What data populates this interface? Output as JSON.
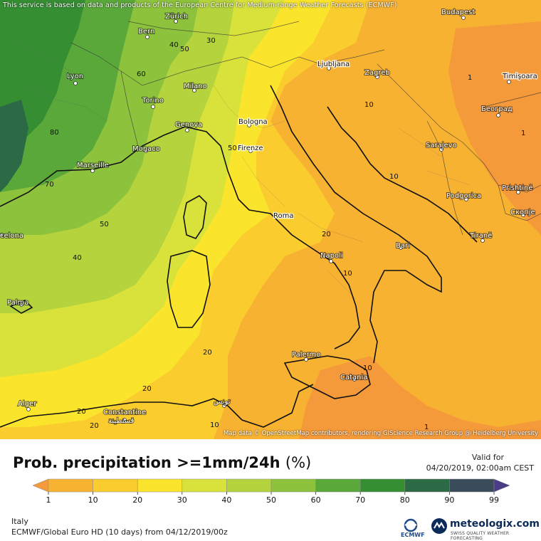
{
  "header": {
    "attribution": "This service is based on data and products of the European Centre for Medium-range Weather Forecasts (ECMWF)",
    "map_credit": "Map data © OpenStreetMap contributors, rendering GIScience Research Group @ Heidelberg University"
  },
  "map": {
    "cities": [
      {
        "name": "Budapest"
      },
      {
        "name": "Zürich"
      },
      {
        "name": "Bern"
      },
      {
        "name": "Lyon"
      },
      {
        "name": "Milano"
      },
      {
        "name": "Torino"
      },
      {
        "name": "Genova"
      },
      {
        "name": "Bologna"
      },
      {
        "name": "Monaco"
      },
      {
        "name": "Firenze"
      },
      {
        "name": "Marseille"
      },
      {
        "name": "Ljubljana"
      },
      {
        "name": "Zagreb"
      },
      {
        "name": "Timişoara"
      },
      {
        "name": "Београд"
      },
      {
        "name": "Sarajevo"
      },
      {
        "name": "Podgorica"
      },
      {
        "name": "Prishtinë"
      },
      {
        "name": "Скопје"
      },
      {
        "name": "Tiranë"
      },
      {
        "name": "Roma"
      },
      {
        "name": "Napoli"
      },
      {
        "name": "Bari"
      },
      {
        "name": "Palma"
      },
      {
        "name": "Palermo"
      },
      {
        "name": "Catania"
      },
      {
        "name": "Alger"
      },
      {
        "name": "Constantine"
      },
      {
        "name": "قسنطينة"
      },
      {
        "name": "تونس"
      },
      {
        "name": "celona"
      }
    ],
    "contour_labels": [
      "30",
      "40",
      "50",
      "60",
      "80",
      "70",
      "50",
      "40",
      "50",
      "20",
      "20",
      "10",
      "20",
      "20",
      "10",
      "20",
      "10",
      "10",
      "1",
      "1",
      "10",
      "1"
    ]
  },
  "title": {
    "text": "Prob. precipitation >=1mm/24h",
    "unit": "(%)"
  },
  "valid": {
    "label": "Valid for",
    "time": "04/20/2019, 02:00am CEST"
  },
  "legend": {
    "ticks": [
      "1",
      "10",
      "20",
      "30",
      "40",
      "50",
      "60",
      "70",
      "80",
      "90",
      "99"
    ],
    "colors": [
      "#f59a3a",
      "#f8b232",
      "#fbcc2e",
      "#fbe52c",
      "#d9e23a",
      "#b5d33c",
      "#8cc23c",
      "#5aa83a",
      "#358f32",
      "#2c6a46",
      "#3a4c5a",
      "#4a3c86"
    ]
  },
  "footer": {
    "region": "Italy",
    "model": "ECMWF/Global Euro HD (10 days) from 04/12/2019/00z",
    "ecmwf_label": "ECMWF",
    "brand": "meteologix.com",
    "tagline": "SWISS QUALITY WEATHER FORECASTING"
  }
}
